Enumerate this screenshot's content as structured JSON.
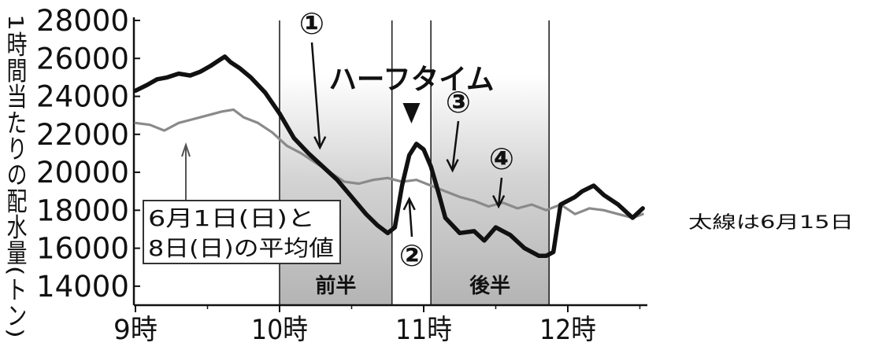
{
  "chart_data": {
    "type": "line",
    "ylabel": "1時間当たりの配水量(トン)",
    "yticks": [
      "28000",
      "26000",
      "24000",
      "22000",
      "20000",
      "18000",
      "16000",
      "14000"
    ],
    "ylim": [
      13000,
      28000
    ],
    "xticks": [
      "9時",
      "10時",
      "11時",
      "12時"
    ],
    "xlim": [
      9.0,
      12.55
    ],
    "grid": false,
    "shaded_periods": [
      {
        "label": "前半",
        "start": 10.0,
        "end": 10.78
      },
      {
        "label": "後半",
        "start": 11.05,
        "end": 11.87
      }
    ],
    "halftime_label": "ハーフタイム",
    "legend_box": [
      "6月1日(日)と",
      "8日(日)の平均値"
    ],
    "side_note": "太線は6月15日",
    "markers": [
      {
        "label": "①",
        "x": 10.28,
        "y": 21300
      },
      {
        "label": "②",
        "x": 10.9,
        "y": 18600
      },
      {
        "label": "③",
        "x": 11.2,
        "y": 20100
      },
      {
        "label": "④",
        "x": 11.52,
        "y": 18200
      }
    ],
    "series": [
      {
        "style": "thick",
        "color": "#111111",
        "x": [
          9.0,
          9.08,
          9.15,
          9.22,
          9.3,
          9.38,
          9.45,
          9.52,
          9.58,
          9.62,
          9.66,
          9.72,
          9.8,
          9.9,
          10.0,
          10.1,
          10.2,
          10.3,
          10.4,
          10.5,
          10.6,
          10.68,
          10.75,
          10.8,
          10.85,
          10.9,
          10.95,
          11.0,
          11.05,
          11.1,
          11.15,
          11.25,
          11.35,
          11.42,
          11.5,
          11.6,
          11.7,
          11.8,
          11.85,
          11.9,
          11.95,
          12.05,
          12.1,
          12.18,
          12.25,
          12.35,
          12.45,
          12.52
        ],
        "y": [
          24300,
          24600,
          24900,
          25000,
          25200,
          25100,
          25300,
          25600,
          25900,
          26100,
          25800,
          25500,
          25000,
          24200,
          23100,
          21800,
          21000,
          20300,
          19600,
          18700,
          17800,
          17200,
          16800,
          17100,
          19300,
          20900,
          21500,
          21200,
          20300,
          19000,
          17600,
          16800,
          16900,
          16400,
          17100,
          16700,
          16000,
          15600,
          15600,
          15800,
          18300,
          18700,
          19000,
          19300,
          18800,
          18300,
          17600,
          18100
        ]
      },
      {
        "style": "thin",
        "color": "#8a8a8a",
        "x": [
          9.0,
          9.1,
          9.2,
          9.3,
          9.4,
          9.5,
          9.6,
          9.68,
          9.75,
          9.85,
          9.95,
          10.05,
          10.15,
          10.25,
          10.35,
          10.45,
          10.55,
          10.65,
          10.75,
          10.85,
          10.95,
          11.05,
          11.15,
          11.25,
          11.35,
          11.45,
          11.55,
          11.65,
          11.75,
          11.85,
          11.95,
          12.05,
          12.15,
          12.25,
          12.35,
          12.45,
          12.52
        ],
        "y": [
          22600,
          22500,
          22200,
          22600,
          22800,
          23000,
          23200,
          23300,
          22900,
          22600,
          22100,
          21400,
          21000,
          20500,
          20000,
          19500,
          19400,
          19600,
          19700,
          19500,
          19600,
          19300,
          19000,
          18700,
          18500,
          18200,
          18400,
          18100,
          18300,
          18000,
          18300,
          17800,
          18100,
          18000,
          17800,
          17600,
          17800
        ]
      }
    ]
  }
}
